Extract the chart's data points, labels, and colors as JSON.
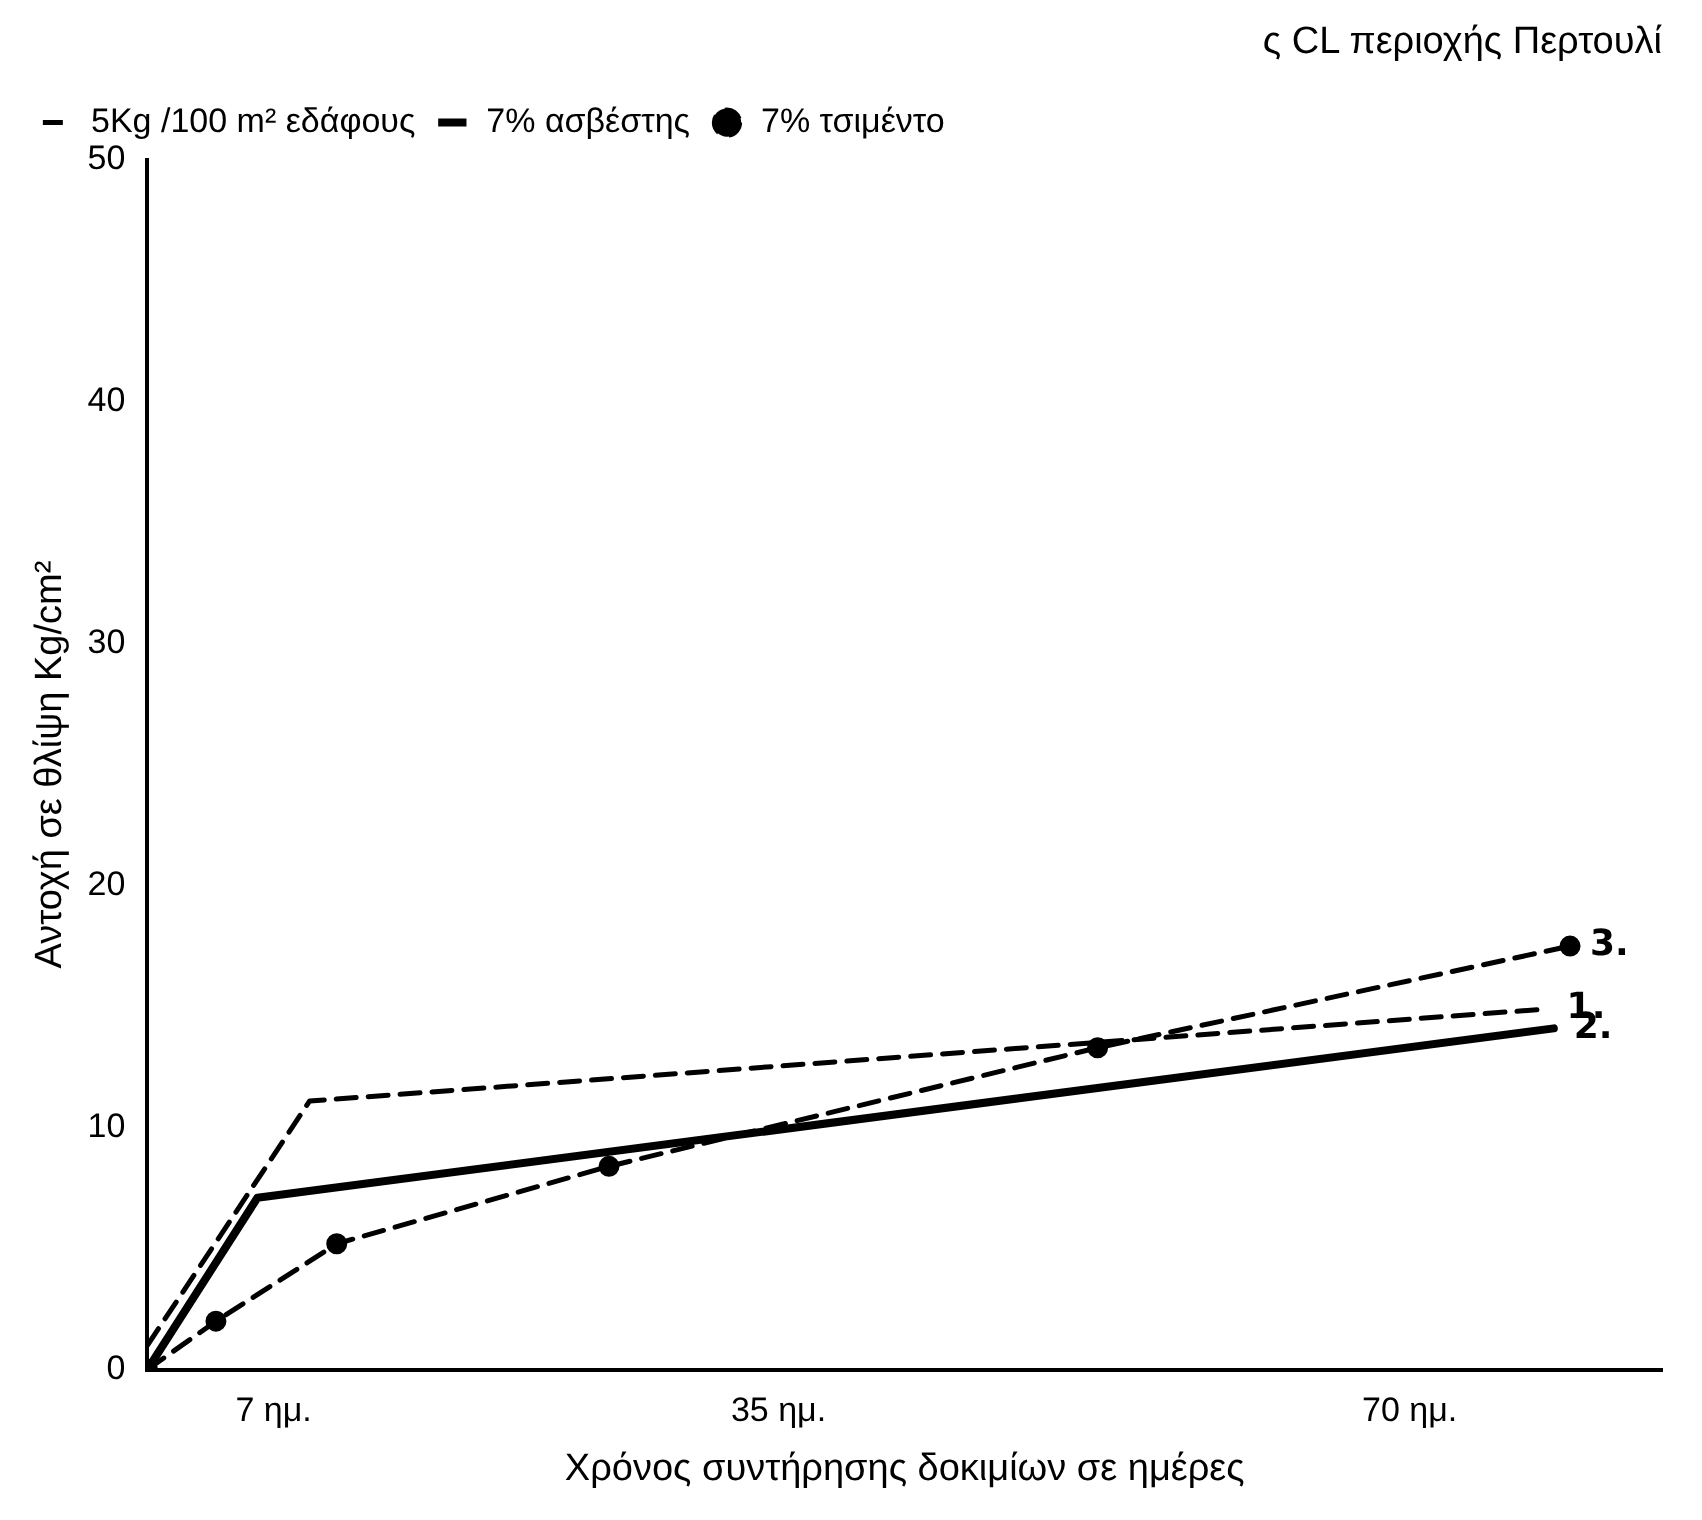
{
  "chart_data": {
    "type": "line",
    "title": "ς CL περιοχής Περτουλί",
    "xlabel": "Χρόνος συντήρησης δοκιμίων σε ημέρες",
    "ylabel": "Αντοχή σε θλίψη Kg/cm²",
    "xlim": [
      0,
      84
    ],
    "xticks": [
      {
        "value": 7,
        "label": "7 ημ."
      },
      {
        "value": 35,
        "label": "35 ημ."
      },
      {
        "value": 70,
        "label": "70 ημ."
      }
    ],
    "ylim": [
      0,
      50
    ],
    "yticks": [
      0,
      10,
      20,
      30,
      40,
      50
    ],
    "grid": false,
    "legend": "top left",
    "series": [
      {
        "name": "5Kg /100 m² εδάφους",
        "color": "#000000",
        "x": [
          0,
          9,
          77.6
        ],
        "values": [
          1,
          11.1,
          14.9
        ],
        "line_style": "dashed",
        "marker": "none"
      },
      {
        "name": "7% ασβέστης",
        "color": "#000000",
        "x": [
          0,
          6.1,
          78
        ],
        "values": [
          0,
          7.1,
          14.1
        ],
        "line_style": "solid",
        "marker": "none"
      },
      {
        "name": "7% τσιμέντο",
        "color": "#000000",
        "x": [
          0,
          3.8,
          10.5,
          25.6,
          52.7,
          78.9
        ],
        "values": [
          0,
          2,
          5.2,
          8.4,
          13.3,
          17.5
        ],
        "line_style": "dashed",
        "marker": "circle"
      }
    ],
    "annotations": [
      {
        "text": "1.",
        "x": 77.6,
        "y": 14.9
      },
      {
        "text": "2.",
        "x": 78,
        "y": 14.1
      },
      {
        "text": "3.",
        "x": 78.9,
        "y": 17.5
      }
    ]
  }
}
